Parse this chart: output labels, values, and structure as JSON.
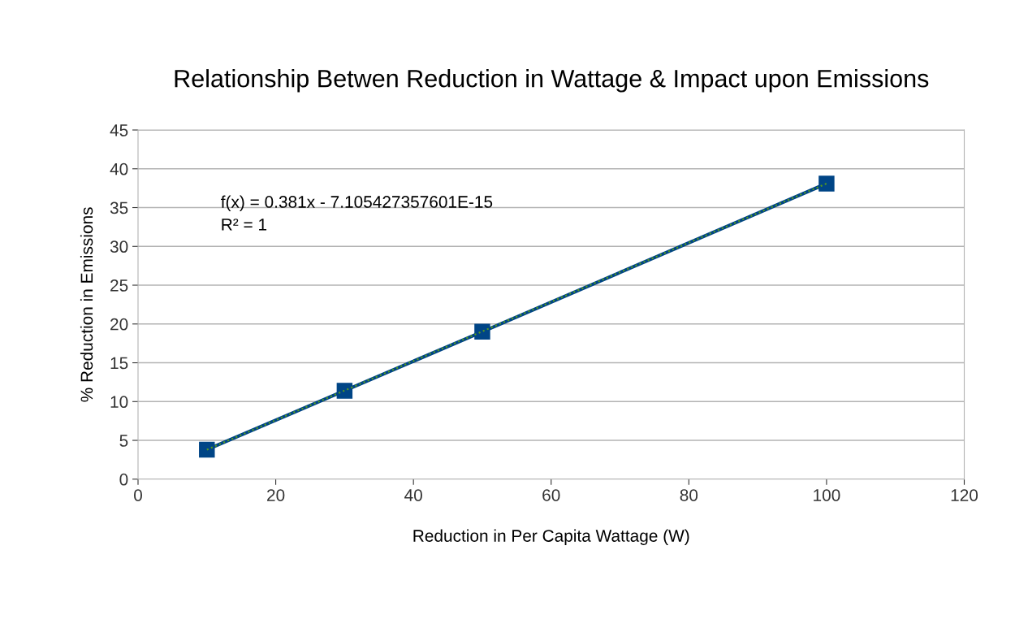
{
  "chart_data": {
    "type": "line",
    "title": "Relationship Betwen Reduction in Wattage & Impact upon Emissions",
    "xlabel": "Reduction in Per Capita Wattage (W)",
    "ylabel": "% Reduction in Emissions",
    "x": [
      10,
      30,
      50,
      100
    ],
    "series": [
      {
        "color": "#004586",
        "values": [
          3.8,
          11.4,
          19,
          38.1
        ],
        "marker": "square",
        "line_style": "solid"
      },
      {
        "type": "line",
        "color": "#579d1c",
        "x": [
          10,
          100
        ],
        "values": [
          3.8,
          38.1
        ],
        "marker": "none",
        "line_style": "dotted"
      }
    ],
    "annotations": [
      "f(x) = 0.381x - 7.105427357601E-15",
      "R² = 1"
    ],
    "xlim": [
      0,
      120
    ],
    "xticks": [
      0,
      20,
      40,
      60,
      80,
      100,
      120
    ],
    "ylim": [
      0,
      45
    ],
    "yticks": [
      0,
      5,
      10,
      15,
      20,
      25,
      30,
      35,
      40,
      45
    ],
    "grid": "y",
    "legend": false
  }
}
